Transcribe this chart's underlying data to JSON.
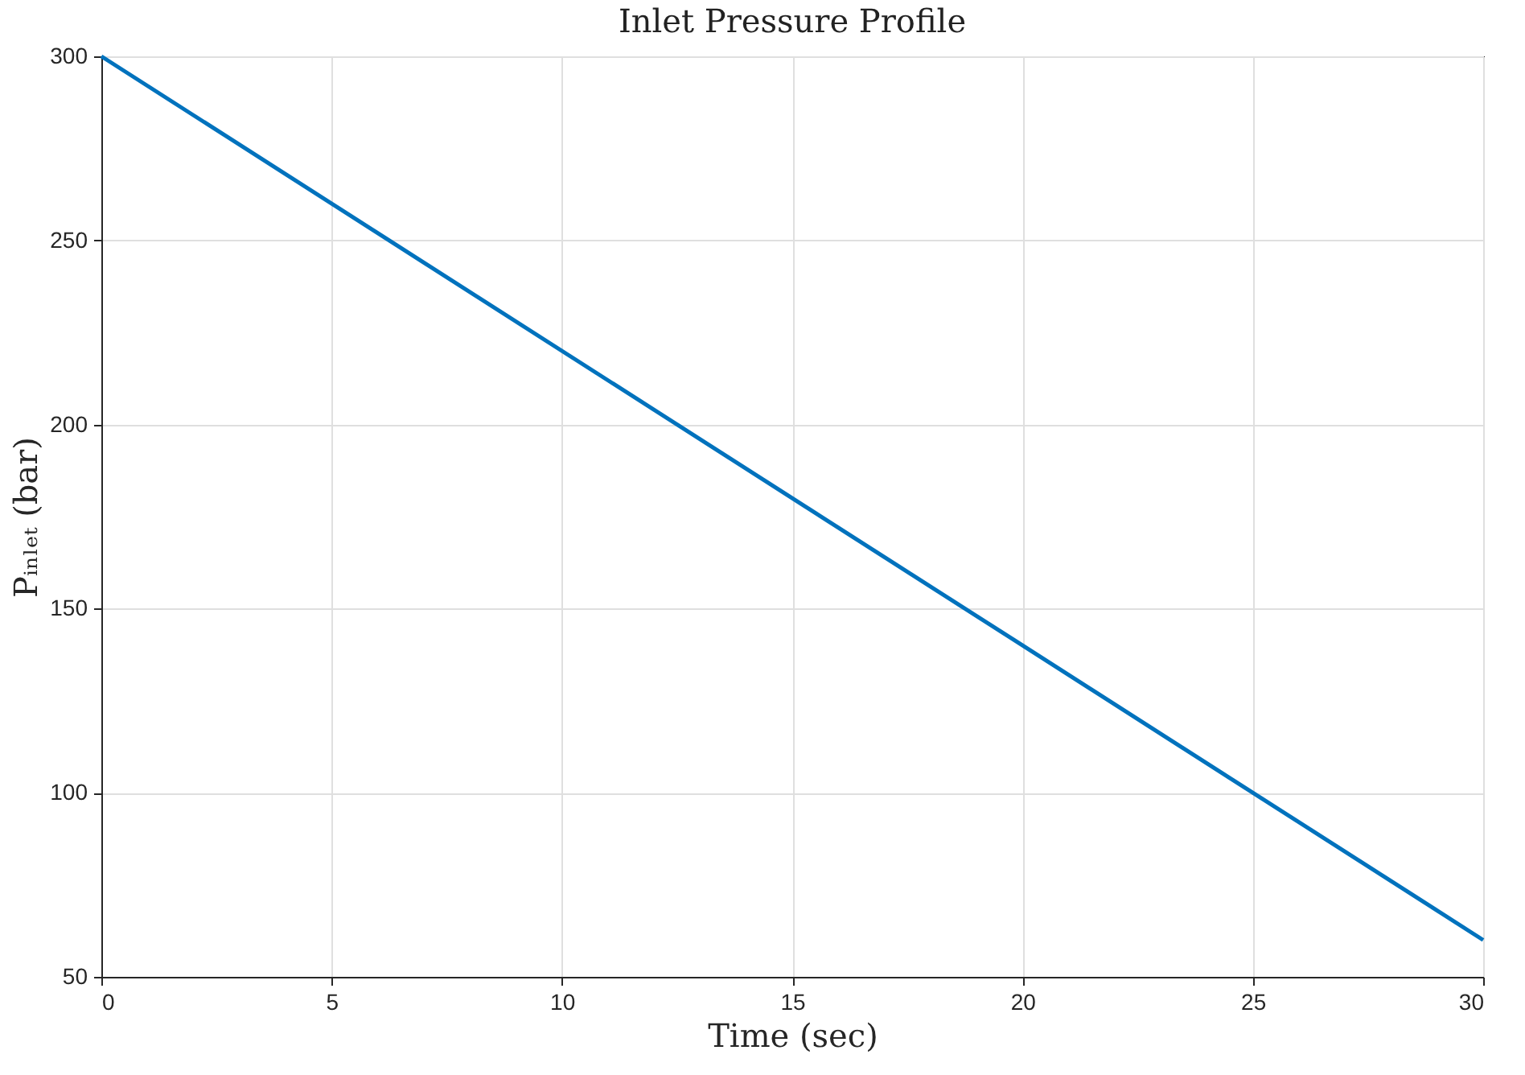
{
  "chart_data": {
    "type": "line",
    "title": "Inlet Pressure Profile",
    "xlabel": "Time (sec)",
    "ylabel": "Pᵢₙₗₑₜ (bar)",
    "x": [
      0,
      30
    ],
    "series": [
      {
        "color": "#0072bd",
        "values": [
          300,
          60
        ]
      }
    ],
    "xlim": [
      0,
      30
    ],
    "xticks": [
      0,
      5,
      10,
      15,
      20,
      25,
      30
    ],
    "ylim": [
      50,
      300
    ],
    "yticks": [
      50,
      100,
      150,
      200,
      250,
      300
    ],
    "grid": true,
    "marker": "none",
    "line_style": "solid"
  }
}
